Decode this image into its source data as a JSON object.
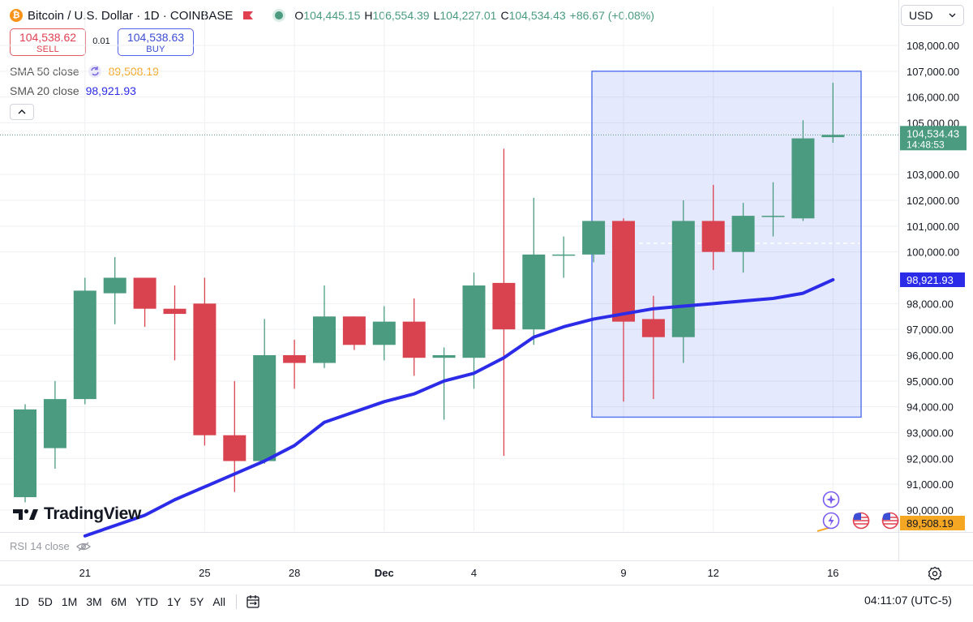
{
  "header": {
    "coin_glyph": "₿",
    "title": "Bitcoin / U.S. Dollar · 1D · COINBASE",
    "o_label": "O",
    "o_value": "104,445.15",
    "h_label": "H",
    "h_value": "106,554.39",
    "l_label": "L",
    "l_value": "104,227.01",
    "c_label": "C",
    "c_value": "104,534.43",
    "change": "+86.67 (+0.08%)"
  },
  "trade": {
    "sell_price": "104,538.62",
    "sell_label": "SELL",
    "spread": "0.01",
    "buy_price": "104,538.63",
    "buy_label": "BUY"
  },
  "indicators": {
    "sma50_name": "SMA 50 close",
    "sma50_value": "89,508.19",
    "sma20_name": "SMA 20 close",
    "sma20_value": "98,921.93",
    "rsi_name": "RSI 14 close"
  },
  "currency": "USD",
  "branding": "TradingView",
  "ranges": [
    "1D",
    "5D",
    "1M",
    "3M",
    "6M",
    "YTD",
    "1Y",
    "5Y",
    "All"
  ],
  "clock": "04:11:07 (UTC-5)",
  "colors": {
    "up": "#4a9b7f",
    "down": "#d9434f",
    "sma20": "#2c2ce8",
    "sma50": "#f5a623",
    "selection": "#5b78f0"
  },
  "chart_data": {
    "type": "candlestick",
    "symbol": "Bitcoin / U.S. Dollar",
    "interval": "1D",
    "ylim": [
      89700,
      108700
    ],
    "y_ticks": [
      "108,000.00",
      "107,000.00",
      "106,000.00",
      "105,000.00",
      "103,000.00",
      "102,000.00",
      "101,000.00",
      "100,000.00",
      "98,000.00",
      "97,000.00",
      "96,000.00",
      "95,000.00",
      "94,000.00",
      "93,000.00",
      "92,000.00",
      "91,000.00",
      "90,000.00"
    ],
    "x_ticks": [
      {
        "label": "21",
        "index": 2
      },
      {
        "label": "25",
        "index": 6
      },
      {
        "label": "28",
        "index": 9
      },
      {
        "label": "Dec",
        "index": 12
      },
      {
        "label": "4",
        "index": 15
      },
      {
        "label": "9",
        "index": 20
      },
      {
        "label": "12",
        "index": 23
      },
      {
        "label": "16",
        "index": 27
      }
    ],
    "candles": [
      {
        "o": 90500,
        "h": 94100,
        "l": 90300,
        "c": 93900
      },
      {
        "o": 92400,
        "h": 95000,
        "l": 91600,
        "c": 94300
      },
      {
        "o": 94300,
        "h": 99000,
        "l": 94100,
        "c": 98500
      },
      {
        "o": 98400,
        "h": 99800,
        "l": 97200,
        "c": 99000
      },
      {
        "o": 99000,
        "h": 99000,
        "l": 97100,
        "c": 97800
      },
      {
        "o": 97800,
        "h": 98700,
        "l": 95800,
        "c": 97600
      },
      {
        "o": 98000,
        "h": 99000,
        "l": 92500,
        "c": 92900
      },
      {
        "o": 92900,
        "h": 95000,
        "l": 90700,
        "c": 91900
      },
      {
        "o": 91900,
        "h": 97400,
        "l": 91800,
        "c": 96000
      },
      {
        "o": 96000,
        "h": 96600,
        "l": 94700,
        "c": 95700
      },
      {
        "o": 95700,
        "h": 98700,
        "l": 95500,
        "c": 97500
      },
      {
        "o": 97500,
        "h": 97500,
        "l": 96200,
        "c": 96400
      },
      {
        "o": 96400,
        "h": 97900,
        "l": 95800,
        "c": 97300
      },
      {
        "o": 97300,
        "h": 98200,
        "l": 95200,
        "c": 95900
      },
      {
        "o": 95900,
        "h": 96300,
        "l": 93500,
        "c": 96000
      },
      {
        "o": 95900,
        "h": 99200,
        "l": 94700,
        "c": 98700
      },
      {
        "o": 98800,
        "h": 104000,
        "l": 92100,
        "c": 97000
      },
      {
        "o": 97000,
        "h": 102100,
        "l": 96400,
        "c": 99900
      },
      {
        "o": 99900,
        "h": 100600,
        "l": 99000,
        "c": 99900
      },
      {
        "o": 99900,
        "h": 101200,
        "l": 99600,
        "c": 101200
      },
      {
        "o": 101200,
        "h": 101300,
        "l": 94200,
        "c": 97300
      },
      {
        "o": 97400,
        "h": 98300,
        "l": 94300,
        "c": 96700
      },
      {
        "o": 96700,
        "h": 102000,
        "l": 95700,
        "c": 101200
      },
      {
        "o": 101200,
        "h": 102600,
        "l": 99300,
        "c": 100000
      },
      {
        "o": 100000,
        "h": 101900,
        "l": 99200,
        "c": 101400
      },
      {
        "o": 101400,
        "h": 102700,
        "l": 100600,
        "c": 101400
      },
      {
        "o": 101300,
        "h": 105100,
        "l": 101200,
        "c": 104400
      },
      {
        "o": 104445.15,
        "h": 106554.39,
        "l": 104227.01,
        "c": 104534.43
      }
    ],
    "sma20": [
      89000,
      89400,
      89800,
      90400,
      90900,
      91400,
      91900,
      92500,
      93400,
      93800,
      94200,
      94500,
      95000,
      95300,
      95900,
      96700,
      97100,
      97400,
      97600,
      97800,
      97900,
      98000,
      98100,
      98200,
      98400,
      98921.93
    ],
    "sma20_start_index": 2,
    "selection_range": {
      "from_index": 20,
      "to_index": 28,
      "y_from": 93600,
      "y_to": 107000
    },
    "last_price_label": "104,534.43",
    "last_price_timer": "14:48:53",
    "sma20_label": "98,921.93",
    "sma50_label": "89,508.19"
  }
}
